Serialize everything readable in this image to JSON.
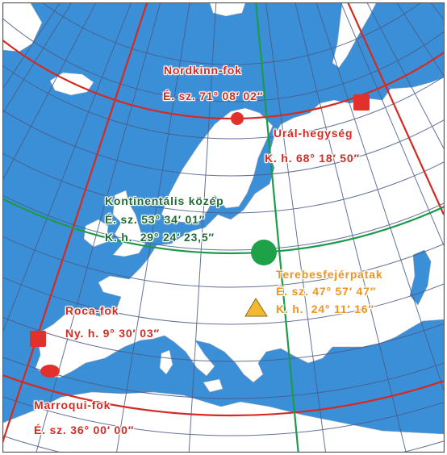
{
  "colors": {
    "sea": "#3b8fd6",
    "land": "#ffffff",
    "graticule": "#4a5a86",
    "extreme_lines": "#d42a22",
    "center_lines": "#1d9a4a",
    "center_marker": "#1fa14a",
    "extreme_marker": "#e2302b",
    "terebes_marker": "#f2b830",
    "label_red": "#d42a22",
    "label_green": "#1f6b34",
    "label_orange": "#ee9420"
  },
  "points": {
    "nordkinn": {
      "name": "Nordkinn-fok",
      "coord": "É. sz. 71° 08′ 02″",
      "marker": "red-circle"
    },
    "ural": {
      "name": "Urál-hegység",
      "coord": "K. h. 68° 18′ 50″",
      "marker": "red-square"
    },
    "center": {
      "name": "Kontinentális közép",
      "lat": "É. sz. 53° 34′ 01″",
      "lon": "K. h.  29° 24′ 23,5″",
      "marker": "green-circle"
    },
    "terebes": {
      "name": "Terebesfejérpatak",
      "lat": "É. sz. 47° 57′ 47″",
      "lon": "K. h.  24° 11′ 16″",
      "marker": "orange-triangle"
    },
    "roca": {
      "name": "Roca-fok",
      "coord": "Ny. h. 9° 30′ 03″",
      "marker": "red-square"
    },
    "marroqui": {
      "name": "Marroqui-fok",
      "coord": "É. sz. 36° 00′ 00″",
      "marker": "red-ellipse"
    }
  }
}
